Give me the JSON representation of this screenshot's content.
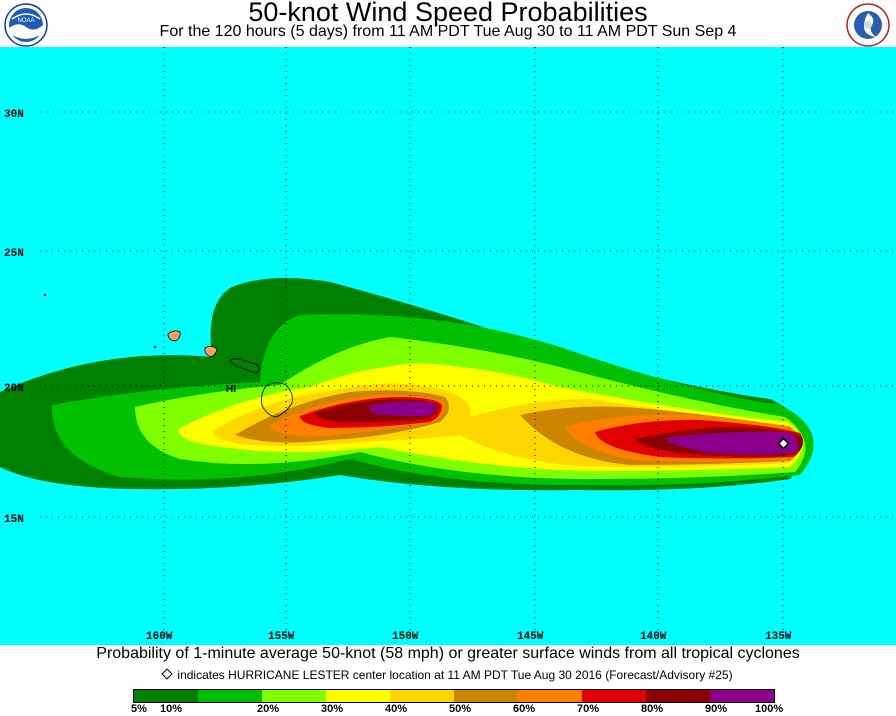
{
  "header": {
    "title": "50-knot Wind Speed Probabilities",
    "subtitle": "For the 120 hours (5 days) from 11 AM PDT Tue Aug 30 to 11 AM PDT Sun Sep 4",
    "left_logo": "NOAA",
    "right_logo": "NATIONAL WEATHER SERVICE"
  },
  "map": {
    "ocean_color": "#00ffff",
    "lat_labels": [
      "30N",
      "25N",
      "20N",
      "15N"
    ],
    "lon_labels": [
      "160W",
      "155W",
      "150W",
      "145W",
      "140W",
      "135W"
    ],
    "island_label": "HI",
    "storm_center_icon": "diamond-icon"
  },
  "footer": {
    "caption": "Probability of 1-minute average 50-knot (58 mph) or greater surface winds from all tropical cyclones",
    "center_note": "indicates HURRICANE LESTER center location at 11 AM PDT Tue Aug 30 2016 (Forecast/Advisory #25)"
  },
  "legend": {
    "colors": [
      "#008000",
      "#00c000",
      "#80ff00",
      "#ffff00",
      "#ffd700",
      "#cd8500",
      "#ff8000",
      "#e00000",
      "#8b0000",
      "#8b008b"
    ],
    "labels": [
      "5%",
      "10%",
      "20%",
      "30%",
      "40%",
      "50%",
      "60%",
      "70%",
      "80%",
      "90%",
      "100%"
    ]
  }
}
